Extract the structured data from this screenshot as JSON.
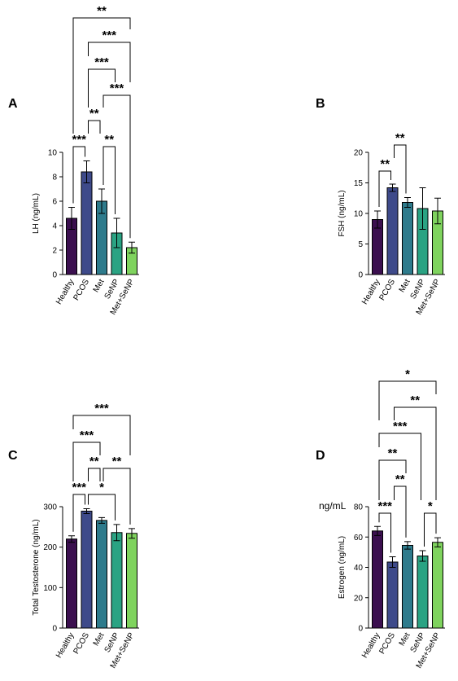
{
  "chart_data": [
    {
      "panel": "A",
      "type": "bar",
      "ylabel": "LH (ng/mL)",
      "categories": [
        "Healthy",
        "PCOS",
        "Met",
        "SeNP",
        "Met+SeNP"
      ],
      "colors": [
        "#3b0f4f",
        "#3e4a8a",
        "#2e7b8c",
        "#2aa383",
        "#7fd35e"
      ],
      "values": [
        4.6,
        8.4,
        6.0,
        3.4,
        2.2
      ],
      "errors": [
        0.9,
        0.9,
        1.0,
        1.2,
        0.45
      ],
      "ylim": [
        0,
        10
      ],
      "yticks": [
        0,
        2,
        4,
        6,
        8,
        10
      ],
      "brackets": [
        {
          "groups": [
            "Healthy",
            "Met+SeNP"
          ],
          "label": "**"
        },
        {
          "groups": [
            "PCOS",
            "Met+SeNP"
          ],
          "label": "***"
        },
        {
          "groups": [
            "PCOS",
            "SeNP"
          ],
          "label": "***"
        },
        {
          "groups": [
            "Met",
            "Met+SeNP"
          ],
          "label": "***"
        },
        {
          "groups": [
            "PCOS",
            "Met"
          ],
          "label": "**"
        },
        {
          "groups": [
            "Healthy",
            "PCOS"
          ],
          "label": "***"
        },
        {
          "groups": [
            "Met",
            "SeNP"
          ],
          "label": "**"
        }
      ]
    },
    {
      "panel": "B",
      "type": "bar",
      "ylabel": "FSH (ng/mL)",
      "categories": [
        "Healthy",
        "PCOS",
        "Met",
        "SeNP",
        "Met+SeNP"
      ],
      "colors": [
        "#3b0f4f",
        "#3e4a8a",
        "#2e7b8c",
        "#2aa383",
        "#7fd35e"
      ],
      "values": [
        9.0,
        14.2,
        11.8,
        10.8,
        10.4
      ],
      "errors": [
        1.4,
        0.6,
        0.8,
        3.4,
        2.1
      ],
      "ylim": [
        0,
        20
      ],
      "yticks": [
        0,
        5,
        10,
        15,
        20
      ],
      "brackets": [
        {
          "groups": [
            "PCOS",
            "Met"
          ],
          "label": "**"
        },
        {
          "groups": [
            "Healthy",
            "PCOS"
          ],
          "label": "**"
        }
      ]
    },
    {
      "panel": "C",
      "type": "bar",
      "ylabel": "Total Testosterone (ng/mL)",
      "categories": [
        "Healthy",
        "PCOS",
        "Met",
        "SeNP",
        "Met+SeNP"
      ],
      "colors": [
        "#3b0f4f",
        "#3e4a8a",
        "#2e7b8c",
        "#2aa383",
        "#7fd35e"
      ],
      "values": [
        220,
        289,
        266,
        236,
        234
      ],
      "errors": [
        8,
        6,
        7,
        20,
        12
      ],
      "ylim": [
        0,
        300
      ],
      "yticks": [
        0,
        100,
        200,
        300
      ],
      "brackets": [
        {
          "groups": [
            "Healthy",
            "Met+SeNP"
          ],
          "label": "***"
        },
        {
          "groups": [
            "Healthy",
            "Met"
          ],
          "label": "***"
        },
        {
          "groups": [
            "PCOS",
            "Met"
          ],
          "label": "**"
        },
        {
          "groups": [
            "Met",
            "Met+SeNP"
          ],
          "label": "**"
        },
        {
          "groups": [
            "Healthy",
            "PCOS"
          ],
          "label": "***"
        },
        {
          "groups": [
            "PCOS",
            "SeNP"
          ],
          "label": "*"
        }
      ]
    },
    {
      "panel": "D",
      "type": "bar",
      "ylabel": "Estrogen (ng/mL)",
      "categories": [
        "Healthy",
        "PCOS",
        "Met",
        "SeNP",
        "Met+SeNP"
      ],
      "colors": [
        "#3b0f4f",
        "#3e4a8a",
        "#2e7b8c",
        "#2aa383",
        "#7fd35e"
      ],
      "values": [
        64,
        43.5,
        54.5,
        47.5,
        56.5
      ],
      "errors": [
        3,
        3.5,
        2.5,
        3.5,
        3
      ],
      "ylim": [
        0,
        80
      ],
      "yticks": [
        0,
        20,
        40,
        60,
        80
      ],
      "annotations": [
        "ng/mL"
      ],
      "brackets": [
        {
          "groups": [
            "Healthy",
            "Met+SeNP"
          ],
          "label": "*"
        },
        {
          "groups": [
            "PCOS",
            "Met+SeNP"
          ],
          "label": "**"
        },
        {
          "groups": [
            "Healthy",
            "SeNP"
          ],
          "label": "***"
        },
        {
          "groups": [
            "Healthy",
            "Met"
          ],
          "label": "**"
        },
        {
          "groups": [
            "PCOS",
            "Met"
          ],
          "label": "**"
        },
        {
          "groups": [
            "Healthy",
            "PCOS"
          ],
          "label": "***"
        },
        {
          "groups": [
            "SeNP",
            "Met+SeNP"
          ],
          "label": "*"
        }
      ]
    }
  ]
}
